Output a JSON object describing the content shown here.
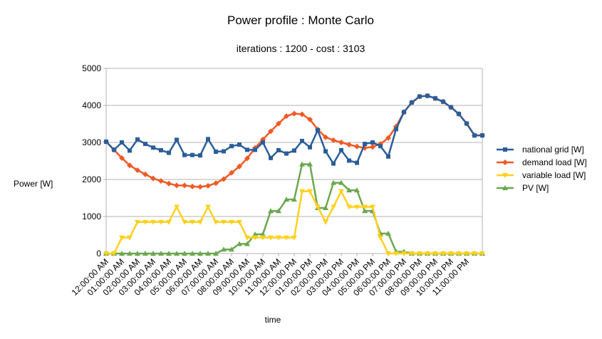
{
  "chart_data": {
    "type": "line",
    "title": "Power profile : Monte Carlo",
    "subtitle": "iterations : 1200 - cost : 3103",
    "xlabel": "time",
    "ylabel": "Power [W]",
    "ylim": [
      0,
      5000
    ],
    "yticks": [
      "0",
      "1000",
      "2000",
      "3000",
      "4000",
      "5000"
    ],
    "grid": "horizontal",
    "legend_position": "right",
    "x_tick_labels": [
      "12:00:00 AM",
      "01:00:00 AM",
      "02:00:00 AM",
      "03:00:00 AM",
      "04:00:00 AM",
      "05:00:00 AM",
      "06:00:00 AM",
      "07:00:00 AM",
      "08:00:00 AM",
      "09:00:00 AM",
      "10:00:00 AM",
      "11:00:00 AM",
      "12:00:00 PM",
      "01:00:00 PM",
      "02:00:00 PM",
      "03:00:00 PM",
      "04:00:00 PM",
      "05:00:00 PM",
      "06:00:00 PM",
      "07:00:00 PM",
      "08:00:00 PM",
      "09:00:00 PM",
      "10:00:00 PM",
      "11:00:00 PM"
    ],
    "x": [
      "00:00",
      "00:30",
      "01:00",
      "01:30",
      "02:00",
      "02:30",
      "03:00",
      "03:30",
      "04:00",
      "04:30",
      "05:00",
      "05:30",
      "06:00",
      "06:30",
      "07:00",
      "07:30",
      "08:00",
      "08:30",
      "09:00",
      "09:30",
      "10:00",
      "10:30",
      "11:00",
      "11:30",
      "12:00",
      "12:30",
      "13:00",
      "13:30",
      "14:00",
      "14:30",
      "15:00",
      "15:30",
      "16:00",
      "16:30",
      "17:00",
      "17:30",
      "18:00",
      "18:30",
      "19:00",
      "19:30",
      "20:00",
      "20:30",
      "21:00",
      "21:30",
      "22:00",
      "22:30",
      "23:00",
      "23:30",
      "24:00"
    ],
    "series": [
      {
        "name": "national grid [W]",
        "color": "#2a5e9a",
        "marker": "square",
        "values": [
          3020,
          2800,
          3000,
          2780,
          3080,
          2960,
          2860,
          2790,
          2720,
          3070,
          2660,
          2660,
          2650,
          3090,
          2750,
          2760,
          2900,
          2940,
          2800,
          2800,
          3000,
          2580,
          2790,
          2700,
          2780,
          3040,
          2870,
          3330,
          2760,
          2430,
          2790,
          2510,
          2450,
          2960,
          3000,
          2900,
          2620,
          3360,
          3820,
          4080,
          4240,
          4260,
          4190,
          4100,
          3950,
          3770,
          3510,
          3190,
          3190
        ]
      },
      {
        "name": "demand load [W]",
        "color": "#ee5a24",
        "marker": "diamond",
        "values": [
          3020,
          2800,
          2580,
          2380,
          2250,
          2140,
          2030,
          1960,
          1890,
          1840,
          1840,
          1810,
          1800,
          1830,
          1900,
          2010,
          2180,
          2350,
          2570,
          2850,
          3080,
          3300,
          3510,
          3710,
          3780,
          3760,
          3620,
          3350,
          3140,
          3060,
          3000,
          2940,
          2890,
          2850,
          2880,
          2960,
          3120,
          3430,
          3820,
          4080,
          4240,
          4260,
          4190,
          4100,
          3950,
          3770,
          3510,
          3190,
          3190
        ]
      },
      {
        "name": "variable load [W]",
        "color": "#ffd01f",
        "marker": "triangle-down",
        "values": [
          0,
          0,
          430,
          430,
          850,
          850,
          850,
          850,
          850,
          1260,
          850,
          850,
          850,
          1260,
          850,
          850,
          850,
          850,
          430,
          430,
          430,
          430,
          430,
          430,
          430,
          1680,
          1680,
          1260,
          850,
          1260,
          1680,
          1260,
          1260,
          1260,
          1260,
          430,
          0,
          0,
          0,
          0,
          0,
          0,
          0,
          0,
          0,
          0,
          0,
          0,
          0
        ]
      },
      {
        "name": "PV [W]",
        "color": "#6aa84f",
        "marker": "triangle-up",
        "values": [
          0,
          0,
          0,
          0,
          0,
          0,
          0,
          0,
          0,
          0,
          0,
          0,
          0,
          0,
          0,
          110,
          110,
          260,
          260,
          520,
          520,
          1150,
          1150,
          1460,
          1460,
          2410,
          2410,
          1230,
          1230,
          1910,
          1910,
          1710,
          1710,
          1150,
          1150,
          540,
          540,
          50,
          50,
          0,
          0,
          0,
          0,
          0,
          0,
          0,
          0,
          0,
          0
        ]
      }
    ]
  }
}
